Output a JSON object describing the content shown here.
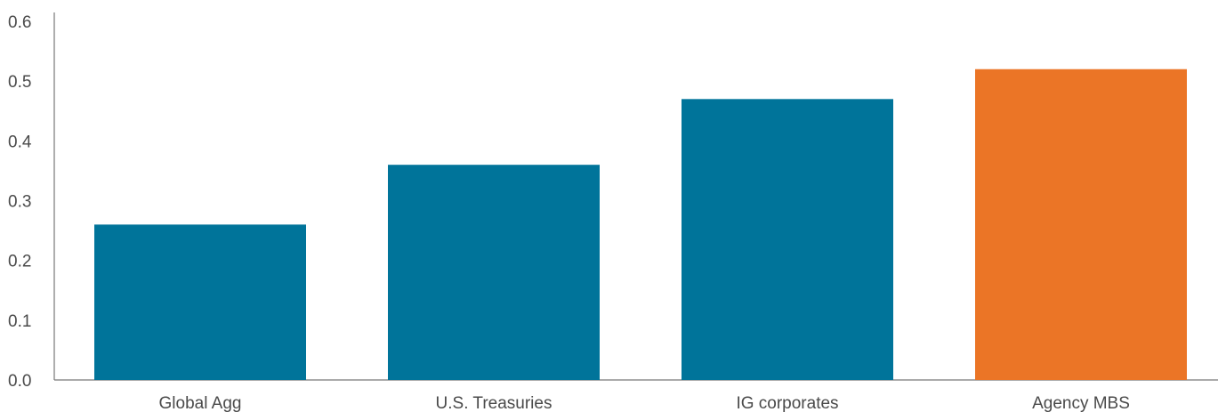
{
  "chart_data": {
    "type": "bar",
    "categories": [
      "Global Agg",
      "U.S. Treasuries",
      "IG corporates",
      "Agency MBS"
    ],
    "values": [
      0.26,
      0.36,
      0.47,
      0.52
    ],
    "bar_colors": [
      "#00749a",
      "#00749a",
      "#00749a",
      "#eb7526"
    ],
    "ylim": [
      0,
      0.6
    ],
    "yticks": [
      0.0,
      0.1,
      0.2,
      0.3,
      0.4,
      0.5,
      0.6
    ],
    "ytick_labels": [
      "0.0",
      "0.1",
      "0.2",
      "0.3",
      "0.4",
      "0.5",
      "0.6"
    ],
    "title": "",
    "xlabel": "",
    "ylabel": "",
    "grid": false,
    "legend": "none"
  }
}
